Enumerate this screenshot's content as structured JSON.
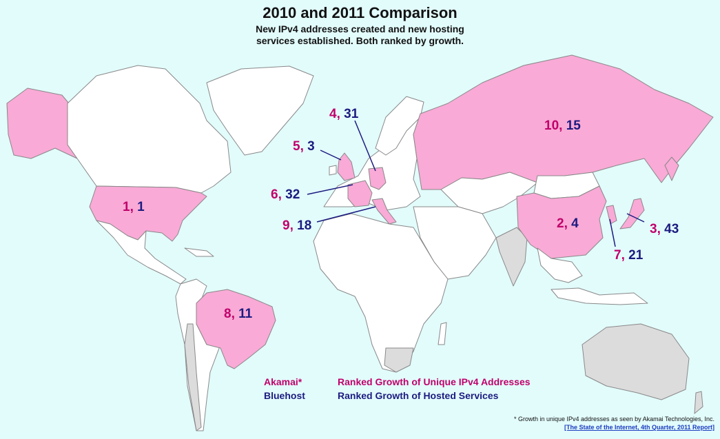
{
  "title": "2010 and 2011 Comparison",
  "subtitle": {
    "line1": "New IPv4 addresses created and new hosting",
    "line2": "services established. Both ranked by growth."
  },
  "colors": {
    "ocean": "#e2fbfb",
    "highlight": "#f9aad6",
    "land": "#ffffff",
    "unranked_grey": "#dcdcdc",
    "border": "#888888",
    "akamai": "#c0006a",
    "bluehost": "#1b1b80"
  },
  "rankings": [
    {
      "country": "United States",
      "akamai": "1,",
      "bluehost": "1"
    },
    {
      "country": "China",
      "akamai": "2,",
      "bluehost": "4"
    },
    {
      "country": "Japan",
      "akamai": "3,",
      "bluehost": "43"
    },
    {
      "country": "Germany",
      "akamai": "4,",
      "bluehost": "31"
    },
    {
      "country": "United Kingdom",
      "akamai": "5,",
      "bluehost": "3"
    },
    {
      "country": "France",
      "akamai": "6,",
      "bluehost": "32"
    },
    {
      "country": "South Korea",
      "akamai": "7,",
      "bluehost": "21"
    },
    {
      "country": "Brazil",
      "akamai": "8,",
      "bluehost": "11"
    },
    {
      "country": "Italy",
      "akamai": "9,",
      "bluehost": "18"
    },
    {
      "country": "Russia",
      "akamai": "10,",
      "bluehost": "15"
    }
  ],
  "legend": {
    "akamai_name": "Akamai*",
    "akamai_desc": "Ranked Growth of Unique IPv4 Addresses",
    "bluehost_name": "Bluehost",
    "bluehost_desc": "Ranked Growth of Hosted Services"
  },
  "footnote": {
    "text": "* Growth in unique IPv4 addresses as seen by Akamai Technologies, Inc.",
    "link": "[The State of the Internet, 4th Quarter, 2011 Report]"
  }
}
